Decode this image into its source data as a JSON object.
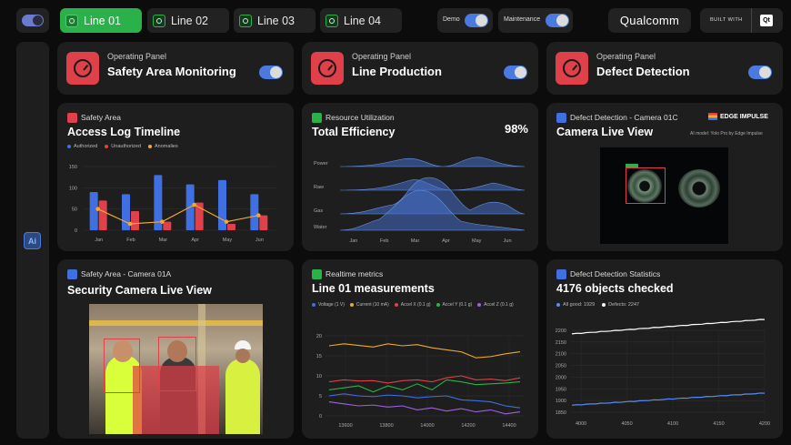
{
  "topbar": {
    "tabs": [
      {
        "label": "Line 01",
        "active": true
      },
      {
        "label": "Line 02",
        "active": false
      },
      {
        "label": "Line 03",
        "active": false
      },
      {
        "label": "Line 04",
        "active": false
      }
    ],
    "demo_label": "Demo",
    "maintenance_label": "Maintenance",
    "brand": "Qualcomm",
    "built_with": "BUILT WITH",
    "built_with_logo": "Qt"
  },
  "sidebar": {
    "ai_label": "Ai"
  },
  "panels": [
    {
      "subtitle": "Operating Panel",
      "title": "Safety Area Monitoring",
      "enabled": true
    },
    {
      "subtitle": "Operating Panel",
      "title": "Line Production",
      "enabled": true
    },
    {
      "subtitle": "Operating Panel",
      "title": "Defect Detection",
      "enabled": true
    }
  ],
  "access_log": {
    "subtitle": "Safety Area",
    "title": "Access Log Timeline",
    "legend": [
      "Authorized",
      "Unauthorized",
      "Anomalies"
    ],
    "colors": {
      "authorized": "#3f6fe0",
      "unauthorized": "#e0404a",
      "anomalies": "#f0a830"
    }
  },
  "resource": {
    "subtitle": "Resource Utilization",
    "title": "Total Efficiency",
    "value": "98%"
  },
  "camera_01c": {
    "subtitle": "Defect Detection - Camera 01C",
    "title": "Camera Live View",
    "brand": "EDGE IMPULSE",
    "model": "AI model: Yolo Pro by Edge Impulse"
  },
  "camera_01a": {
    "subtitle": "Safety Area - Camera 01A",
    "title": "Security Camera Live View"
  },
  "realtime": {
    "subtitle": "Realtime metrics",
    "title": "Line 01 measurements",
    "legend": [
      "Voltage (1 V)",
      "Current (10 mA)",
      "Accel X (0.1 g)",
      "Accel Y (0.1 g)",
      "Accel Z (0.1 g)"
    ],
    "colors": [
      "#3f6fe0",
      "#f0a830",
      "#e0404a",
      "#2bb14a",
      "#a060e0"
    ]
  },
  "defect_stats": {
    "subtitle": "Defect Detection Statistics",
    "title": "4176 objects checked",
    "legend": [
      "All good: 1929",
      "Defects: 2247"
    ],
    "colors": [
      "#5b8cf0",
      "#ffffff"
    ]
  },
  "chart_data": [
    {
      "type": "bar",
      "title": "Access Log Timeline",
      "categories": [
        "Jan",
        "Feb",
        "Mar",
        "Apr",
        "May",
        "Jun"
      ],
      "ylim": [
        0,
        150
      ],
      "yticks": [
        0,
        50,
        100,
        150
      ],
      "series": [
        {
          "name": "Authorized",
          "values": [
            90,
            85,
            130,
            108,
            118,
            85
          ]
        },
        {
          "name": "Unauthorized",
          "values": [
            70,
            45,
            20,
            65,
            15,
            35
          ]
        },
        {
          "name": "Anomalies",
          "type": "line",
          "values": [
            50,
            15,
            20,
            60,
            20,
            35
          ]
        }
      ]
    },
    {
      "type": "area",
      "title": "Total Efficiency",
      "categories": [
        "Jan",
        "Feb",
        "Mar",
        "Apr",
        "May",
        "Jun"
      ],
      "rows": [
        "Power",
        "Raw",
        "Gas",
        "Water"
      ]
    },
    {
      "type": "line",
      "title": "Line 01 measurements",
      "x_ticks": [
        13600,
        13800,
        14000,
        14200,
        14400
      ],
      "ylim": [
        0,
        20
      ],
      "yticks": [
        0,
        5,
        10,
        15,
        20
      ],
      "series": [
        {
          "name": "Voltage (1 V)",
          "values": [
            5,
            5.5,
            5,
            4.8,
            5.2,
            5,
            4.5,
            4.8,
            5,
            4,
            3.8,
            3.5,
            2.5,
            2
          ]
        },
        {
          "name": "Current (10 mA)",
          "values": [
            17.5,
            18,
            17.6,
            17.2,
            18,
            17.5,
            17.8,
            17,
            16.5,
            16,
            14.5,
            14.8,
            15.5,
            16
          ]
        },
        {
          "name": "Accel X (0.1 g)",
          "values": [
            8.5,
            9,
            8.7,
            8.8,
            8.2,
            8.8,
            9,
            8.5,
            9.5,
            10,
            9,
            9.2,
            8.8,
            9.5
          ]
        },
        {
          "name": "Accel Y (0.1 g)",
          "values": [
            6.5,
            7,
            7.5,
            6,
            7.5,
            6.5,
            8,
            6.5,
            9,
            8.5,
            7.8,
            8,
            8.2,
            8.5
          ]
        },
        {
          "name": "Accel Z (0.1 g)",
          "values": [
            3.5,
            3,
            2.5,
            2.7,
            2.2,
            2.5,
            1.5,
            2,
            1.2,
            1.8,
            1,
            1.5,
            0.5,
            1
          ]
        }
      ]
    },
    {
      "type": "line",
      "title": "4176 objects checked",
      "x_ticks": [
        4000,
        4050,
        4100,
        4150,
        4200
      ],
      "ylim": [
        1850,
        2200
      ],
      "yticks": [
        1850,
        1900,
        1950,
        2000,
        2050,
        2100,
        2150,
        2200
      ],
      "series": [
        {
          "name": "All good: 1929",
          "x": [
            3990,
            4200
          ],
          "values": [
            1880,
            1932
          ]
        },
        {
          "name": "Defects: 2247",
          "x": [
            3990,
            4200
          ],
          "values": [
            2185,
            2247
          ]
        }
      ]
    }
  ]
}
